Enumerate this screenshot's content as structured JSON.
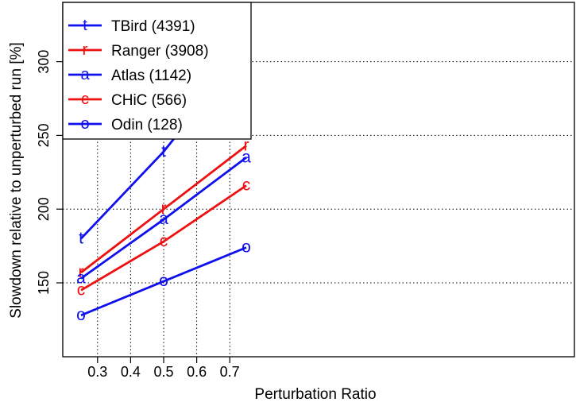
{
  "chart_data": {
    "type": "line",
    "title": "",
    "xlabel": "Perturbation Ratio",
    "ylabel": "Slowdown relative to unperturbed run [%]",
    "x": [
      0.25,
      0.5,
      0.75
    ],
    "xlim": [
      0.2,
      0.76
    ],
    "ylim": [
      105,
      320
    ],
    "xticks": [
      0.3,
      0.4,
      0.5,
      0.6,
      0.7
    ],
    "xtick_labels": [
      "0.3",
      "0.4",
      "0.5",
      "0.6",
      "0.7"
    ],
    "yticks": [
      150,
      200,
      250,
      300
    ],
    "ytick_labels": [
      "150",
      "200",
      "250",
      "300"
    ],
    "grid": true,
    "legend_position": "top-left",
    "series": [
      {
        "name": "TBird (4391)",
        "marker": "t",
        "color": "#1010ee",
        "values": [
          180,
          239,
          309
        ]
      },
      {
        "name": "Ranger (3908)",
        "marker": "r",
        "color": "#ee1010",
        "values": [
          157,
          200,
          243
        ]
      },
      {
        "name": "Atlas (1142)",
        "marker": "a",
        "color": "#1010ee",
        "values": [
          153,
          193,
          235
        ]
      },
      {
        "name": "CHiC (566)",
        "marker": "c",
        "color": "#ee1010",
        "values": [
          145,
          178,
          216
        ]
      },
      {
        "name": "Odin (128)",
        "marker": "o",
        "color": "#1010ee",
        "values": [
          128,
          151,
          174
        ]
      }
    ]
  }
}
